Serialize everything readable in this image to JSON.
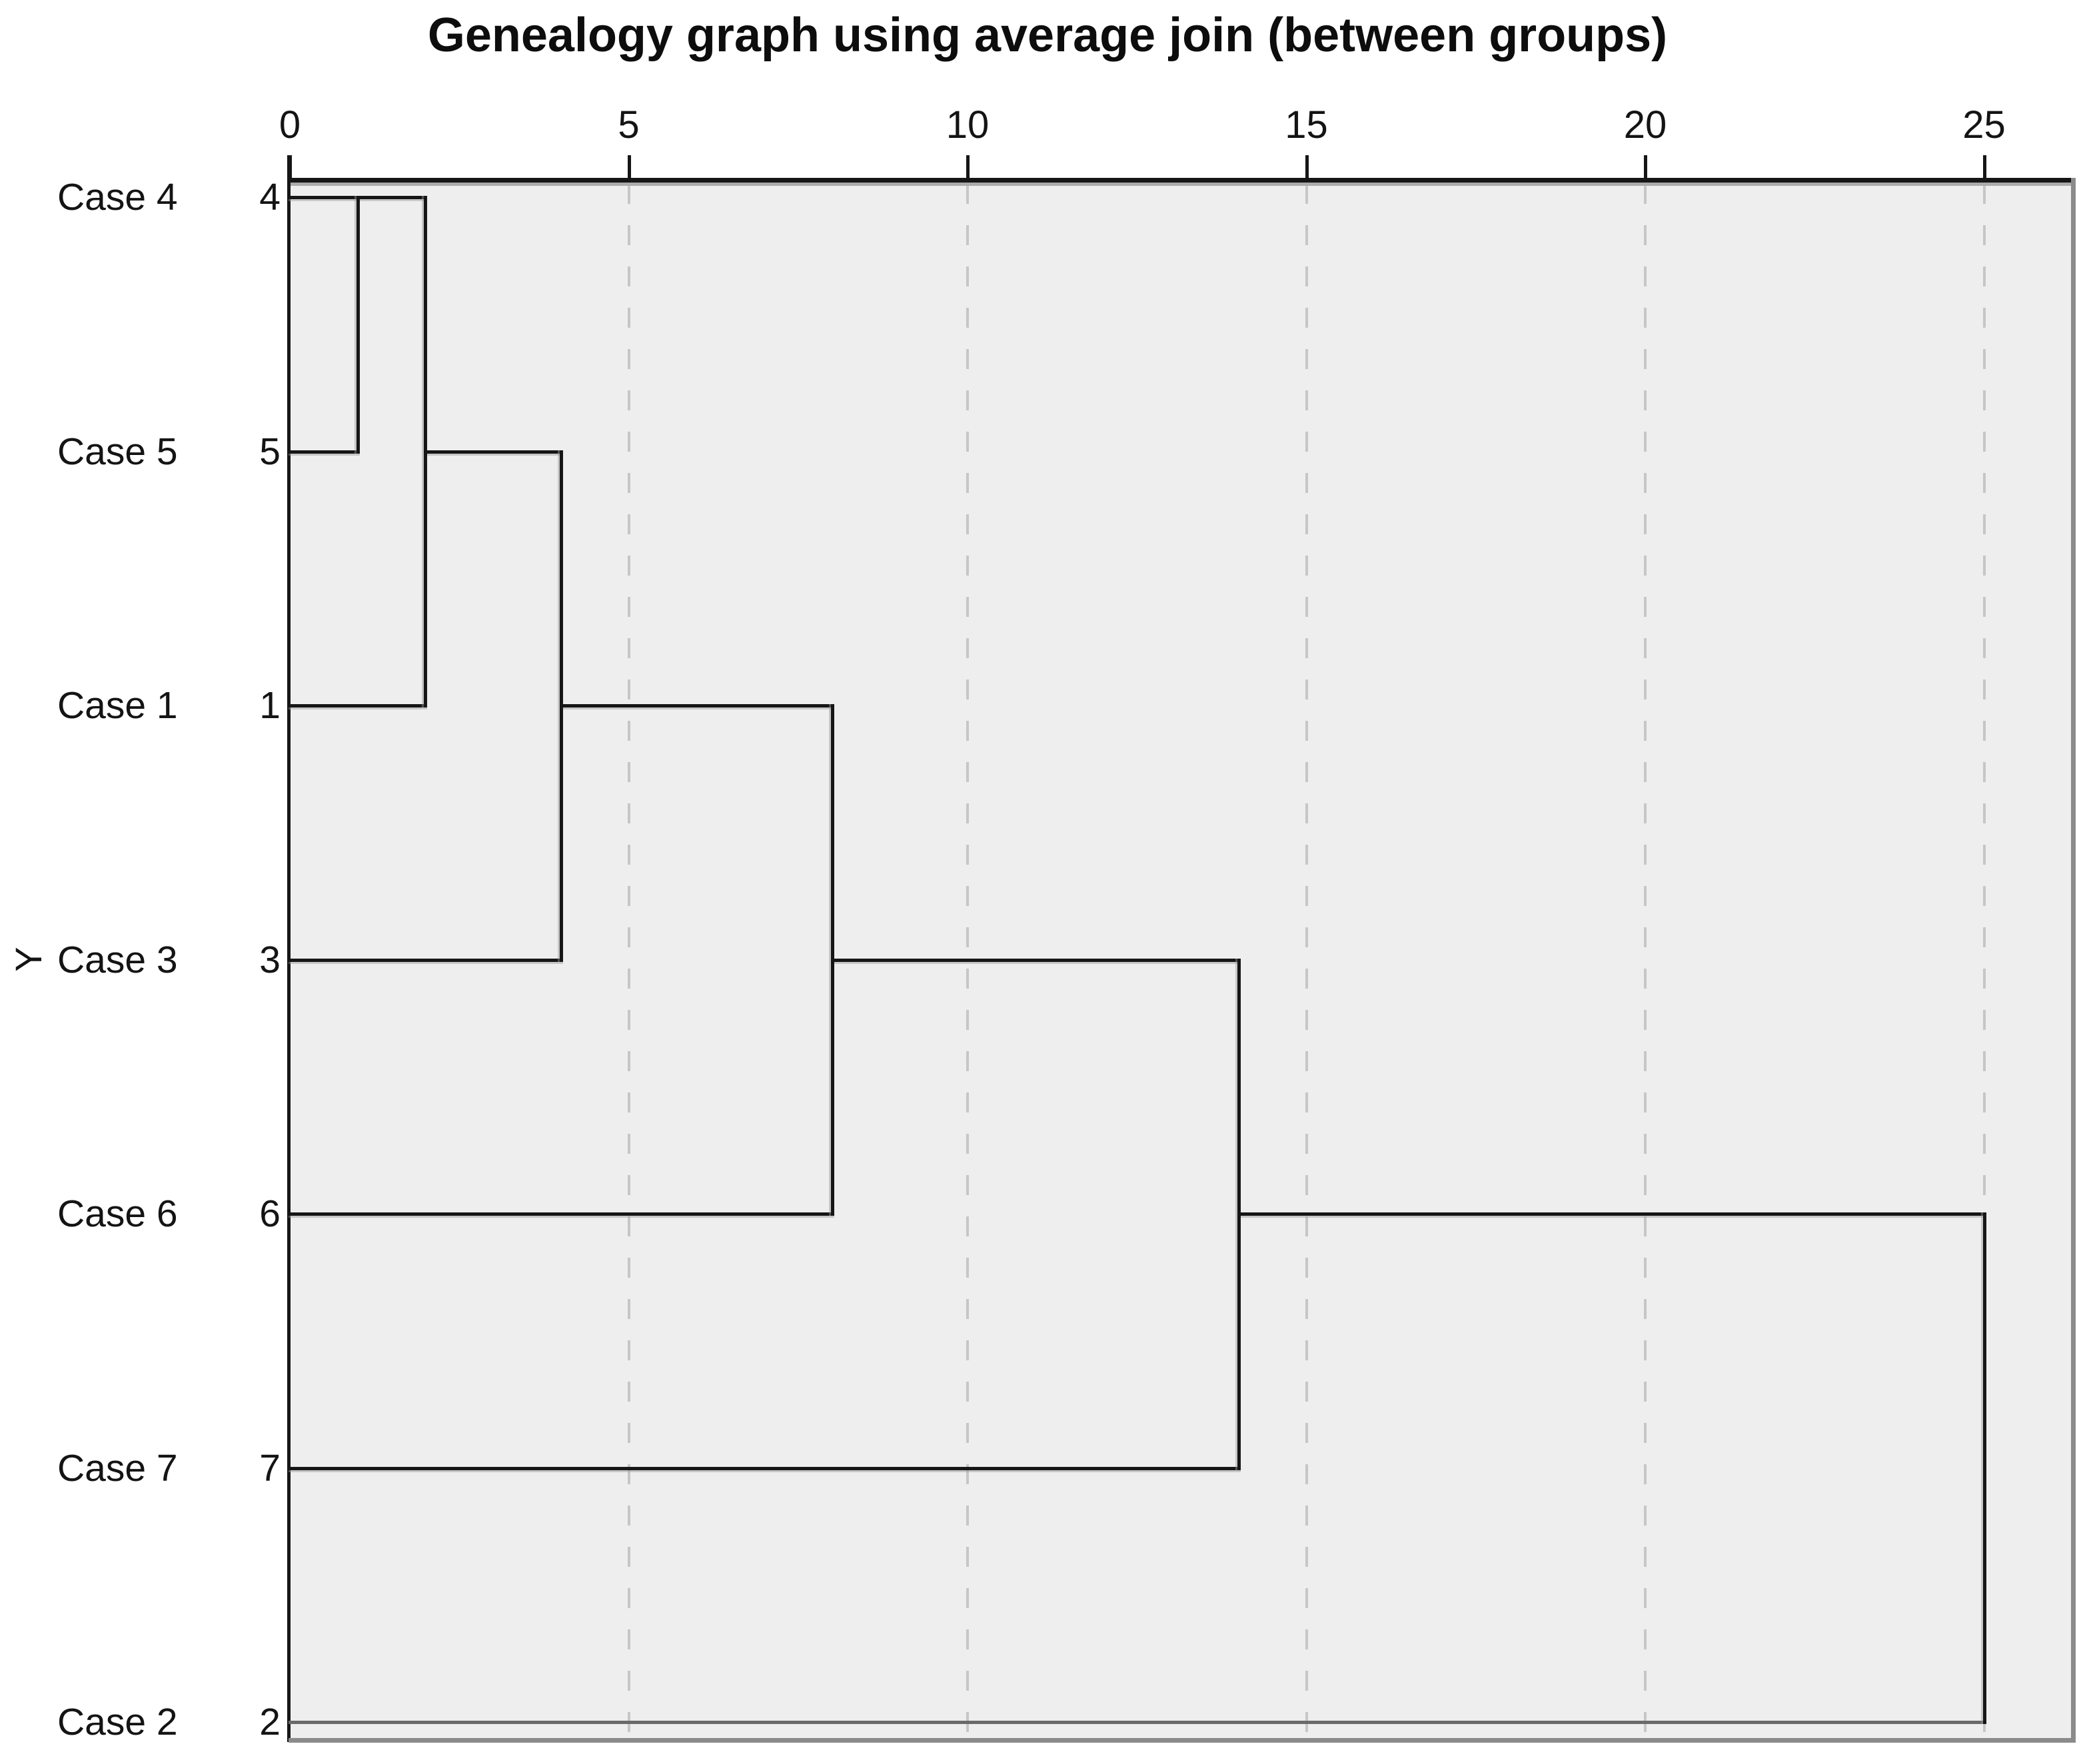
{
  "title": "Genealogy graph using average join (between groups)",
  "y_axis_label": "Y",
  "colors": {
    "background": "#ffffff",
    "plot_background": "#eeeeee",
    "line": "#161616",
    "muted_line": "#6a6a6a",
    "gridline": "#c6c6c6",
    "border_gray": "#8b8b8b",
    "line_shadow": "#969696",
    "text": "#141414"
  },
  "chart_data": {
    "type": "dendrogram",
    "orientation": "horizontal",
    "title": "Genealogy graph using average join (between groups)",
    "y_axis_label": "Y",
    "axis": {
      "position": "top",
      "ticks": [
        0,
        5,
        10,
        15,
        20,
        25
      ],
      "range": [
        0,
        26.3
      ],
      "gridlines_at": [
        5,
        10,
        15,
        20,
        25
      ],
      "grid_style": "dashed",
      "grid_on": true
    },
    "legend": "none",
    "leaves": [
      {
        "case_label": "Case 4",
        "number": "4"
      },
      {
        "case_label": "Case 5",
        "number": "5"
      },
      {
        "case_label": "Case 1",
        "number": "1"
      },
      {
        "case_label": "Case 3",
        "number": "3"
      },
      {
        "case_label": "Case 6",
        "number": "6"
      },
      {
        "case_label": "Case 7",
        "number": "7"
      },
      {
        "case_label": "Case 2",
        "number": "2"
      }
    ],
    "merges": [
      {
        "members": [
          "Case 4",
          "Case 5"
        ],
        "distance": 1
      },
      {
        "members": [
          "Case 4+5",
          "Case 1"
        ],
        "distance": 2
      },
      {
        "members": [
          "Case 4+5+1",
          "Case 3"
        ],
        "distance": 4
      },
      {
        "members": [
          "Case 4+5+1+3",
          "Case 6"
        ],
        "distance": 8
      },
      {
        "members": [
          "Case 4+5+1+3+6",
          "Case 7"
        ],
        "distance": 14
      },
      {
        "members": [
          "Case 4+5+1+3+6+7",
          "Case 2"
        ],
        "distance": 25
      }
    ],
    "segments": {
      "horizontal": [
        {
          "row": 0,
          "from": 0,
          "to": 2
        },
        {
          "row": 1,
          "from": 0,
          "to": 1
        },
        {
          "row": 1,
          "from": 2,
          "to": 4
        },
        {
          "row": 2,
          "from": 0,
          "to": 2
        },
        {
          "row": 2,
          "from": 4,
          "to": 8
        },
        {
          "row": 3,
          "from": 0,
          "to": 4
        },
        {
          "row": 3,
          "from": 8,
          "to": 14
        },
        {
          "row": 4,
          "from": 0,
          "to": 8
        },
        {
          "row": 4,
          "from": 14,
          "to": 25
        },
        {
          "row": 5,
          "from": 0,
          "to": 14
        },
        {
          "row": 6,
          "from": 0,
          "to": 25,
          "muted": true
        }
      ],
      "vertical": [
        {
          "at": 1,
          "from_row": 0,
          "to_row": 1
        },
        {
          "at": 2,
          "from_row": 0,
          "to_row": 2
        },
        {
          "at": 4,
          "from_row": 1,
          "to_row": 3
        },
        {
          "at": 8,
          "from_row": 2,
          "to_row": 4
        },
        {
          "at": 14,
          "from_row": 3,
          "to_row": 5
        },
        {
          "at": 25,
          "from_row": 4,
          "to_row": 6
        }
      ]
    }
  }
}
